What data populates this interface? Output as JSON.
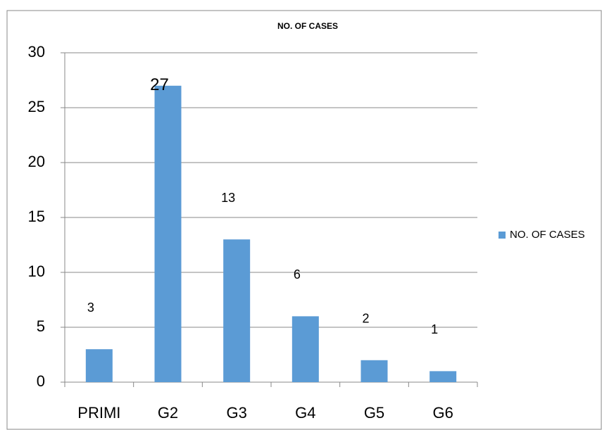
{
  "chart_data": {
    "type": "bar",
    "title": "NO. OF CASES",
    "categories": [
      "PRIMI",
      "G2",
      "G3",
      "G4",
      "G5",
      "G6"
    ],
    "series": [
      {
        "name": "NO. OF CASES",
        "color": "#5b9bd5",
        "values": [
          3,
          27,
          13,
          6,
          2,
          1
        ]
      }
    ],
    "ylim": [
      0,
      30
    ],
    "yticks": [
      0,
      5,
      10,
      15,
      20,
      25,
      30
    ],
    "grid": true,
    "legend": "right"
  }
}
